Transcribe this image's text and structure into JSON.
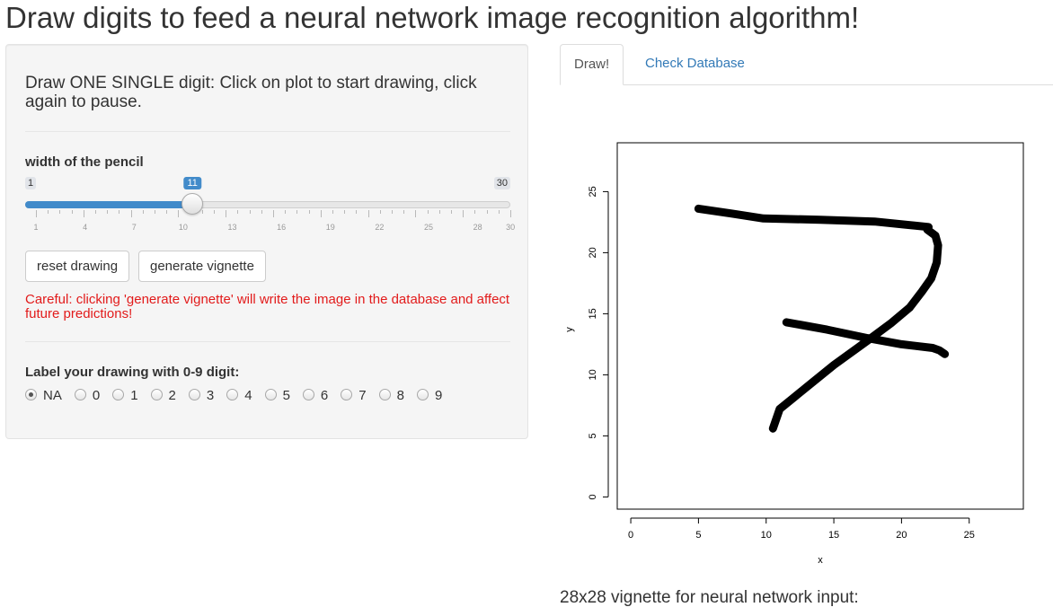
{
  "title": "Draw digits to feed a neural network image recognition algorithm!",
  "sidebar": {
    "instructions": "Draw ONE SINGLE digit: Click on plot to start drawing, click again to pause.",
    "pencil": {
      "label": "width of the pencil",
      "min": 1,
      "max": 30,
      "value": 11,
      "min_label": "1",
      "max_label": "30",
      "value_label": "11",
      "tick_labels": [
        "1",
        "4",
        "7",
        "10",
        "13",
        "16",
        "19",
        "22",
        "25",
        "28",
        "30"
      ]
    },
    "buttons": {
      "reset": "reset drawing",
      "generate": "generate vignette"
    },
    "warning": "Careful: clicking 'generate vignette' will write the image in the database and affect future predictions!",
    "label_prompt": "Label your drawing with 0-9 digit:",
    "label_options": [
      "NA",
      "0",
      "1",
      "2",
      "3",
      "4",
      "5",
      "6",
      "7",
      "8",
      "9"
    ],
    "label_selected": "NA"
  },
  "tabs": [
    {
      "label": "Draw!",
      "active": true
    },
    {
      "label": "Check Database",
      "active": false
    }
  ],
  "chart_data": {
    "type": "line",
    "xlabel": "x",
    "ylabel": "y",
    "xlim": [
      -1,
      29
    ],
    "ylim": [
      -1,
      29
    ],
    "x_ticks": [
      0,
      5,
      10,
      15,
      20,
      25
    ],
    "y_ticks": [
      0,
      5,
      10,
      15,
      20,
      25
    ],
    "series": [
      {
        "color": "#000000",
        "points": [
          [
            5.0,
            23.6
          ],
          [
            7.5,
            23.2
          ],
          [
            9.8,
            22.8
          ],
          [
            14.0,
            22.7
          ],
          [
            18.0,
            22.55
          ],
          [
            22.0,
            22.1
          ],
          [
            21.9,
            21.9
          ],
          [
            22.5,
            21.4
          ],
          [
            22.7,
            20.6
          ],
          [
            22.6,
            19.2
          ],
          [
            22.2,
            17.9
          ],
          [
            21.5,
            16.8
          ],
          [
            20.6,
            15.5
          ],
          [
            19.2,
            14.2
          ],
          [
            17.5,
            12.8
          ],
          [
            15.0,
            10.8
          ],
          [
            13.0,
            9.0
          ],
          [
            12.0,
            8.1
          ],
          [
            11.0,
            7.2
          ],
          [
            10.5,
            5.6
          ]
        ]
      },
      {
        "color": "#000000",
        "points": [
          [
            11.5,
            14.3
          ],
          [
            14.5,
            13.7
          ],
          [
            17.5,
            13.0
          ],
          [
            20.0,
            12.5
          ],
          [
            22.3,
            12.2
          ],
          [
            22.8,
            12.0
          ],
          [
            23.2,
            11.7
          ]
        ]
      }
    ]
  },
  "vignette_label": "28x28 vignette for neural network input:"
}
